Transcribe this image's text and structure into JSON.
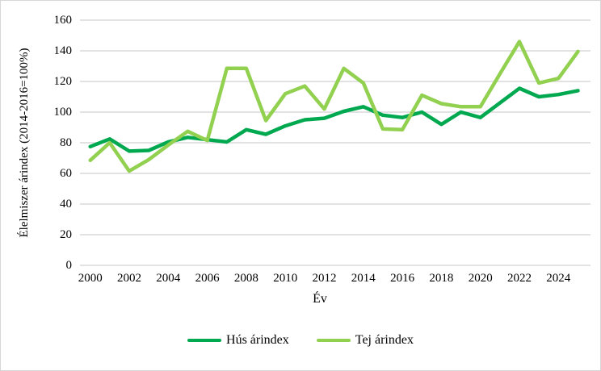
{
  "chart_data": {
    "type": "line",
    "xlabel": "Év",
    "ylabel": "Élelmiszer árindex (2014-2016=100%)",
    "ylim": [
      0,
      160
    ],
    "ytick_step": 20,
    "y_tick_labels": [
      "0",
      "20",
      "40",
      "60",
      "80",
      "100",
      "120",
      "140",
      "160"
    ],
    "x_tick_labels": [
      "2000",
      "2002",
      "2004",
      "2006",
      "2008",
      "2010",
      "2012",
      "2014",
      "2016",
      "2018",
      "2020",
      "2022",
      "2024"
    ],
    "grid": "horizontal",
    "gridline_color": "#d9d9d9",
    "legend_position": "bottom",
    "x": [
      2000,
      2001,
      2002,
      2003,
      2004,
      2005,
      2006,
      2007,
      2008,
      2009,
      2010,
      2011,
      2012,
      2013,
      2014,
      2015,
      2016,
      2017,
      2018,
      2019,
      2020,
      2021,
      2022,
      2023,
      2024,
      2025
    ],
    "series": [
      {
        "name": "Hús árindex",
        "color": "#00a950",
        "values": [
          77.5,
          82.5,
          74.5,
          75,
          80.5,
          83.5,
          82,
          80.5,
          88.5,
          85.5,
          91,
          95,
          96,
          100.5,
          103.5,
          98,
          96.5,
          100,
          92,
          100,
          96.5,
          106,
          115.5,
          110,
          111.5,
          114
        ]
      },
      {
        "name": "Tej árindex",
        "color": "#92d050",
        "values": [
          68.5,
          80,
          61.5,
          69,
          78.5,
          87.5,
          81.5,
          128.5,
          128.5,
          94.5,
          112,
          117,
          102,
          128.5,
          119,
          89,
          88.5,
          111,
          105.5,
          103.5,
          103.5,
          125,
          146,
          119,
          122,
          139.5
        ]
      }
    ]
  }
}
